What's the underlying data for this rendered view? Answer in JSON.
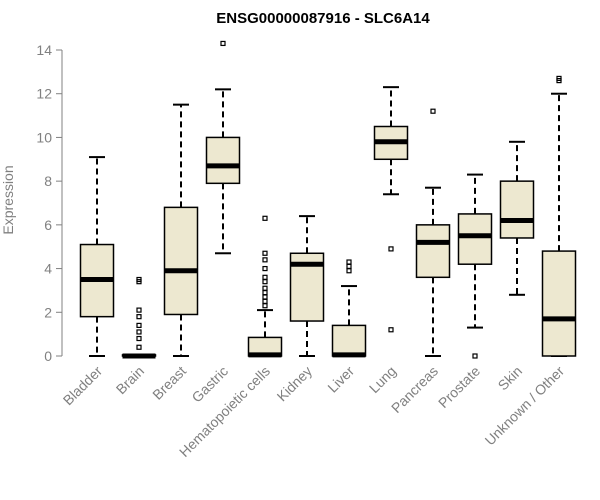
{
  "chart_data": {
    "type": "box",
    "title": "ENSG00000087916 - SLC6A14",
    "xlabel": "",
    "ylabel": "Expression",
    "ylim": [
      0,
      14
    ],
    "yticks": [
      0,
      2,
      4,
      6,
      8,
      10,
      12,
      14
    ],
    "grid": false,
    "box_fill": "#ede8d0",
    "categories": [
      "Bladder",
      "Brain",
      "Breast",
      "Gastric",
      "Hematopoietic cells",
      "Kidney",
      "Liver",
      "Lung",
      "Pancreas",
      "Prostate",
      "Skin",
      "Unknown / Other"
    ],
    "boxes": [
      {
        "whisker_low": 0.0,
        "q1": 1.8,
        "median": 3.5,
        "q3": 5.1,
        "whisker_high": 9.1,
        "outliers": []
      },
      {
        "whisker_low": 0.0,
        "q1": 0.0,
        "median": 0.0,
        "q3": 0.05,
        "whisker_high": 0.05,
        "outliers": [
          0.4,
          0.8,
          1.1,
          1.4,
          1.8,
          2.1,
          3.4,
          3.5
        ]
      },
      {
        "whisker_low": 0.0,
        "q1": 1.9,
        "median": 3.9,
        "q3": 6.8,
        "whisker_high": 11.5,
        "outliers": []
      },
      {
        "whisker_low": 4.7,
        "q1": 7.9,
        "median": 8.7,
        "q3": 10.0,
        "whisker_high": 12.2,
        "outliers": [
          14.3
        ]
      },
      {
        "whisker_low": 0.0,
        "q1": 0.0,
        "median": 0.05,
        "q3": 0.85,
        "whisker_high": 2.1,
        "outliers": [
          2.3,
          2.5,
          2.7,
          2.9,
          3.1,
          3.4,
          3.6,
          4.0,
          4.4,
          4.7,
          6.3
        ]
      },
      {
        "whisker_low": 0.0,
        "q1": 1.6,
        "median": 4.2,
        "q3": 4.7,
        "whisker_high": 6.4,
        "outliers": []
      },
      {
        "whisker_low": 0.0,
        "q1": 0.0,
        "median": 0.05,
        "q3": 1.4,
        "whisker_high": 3.2,
        "outliers": [
          3.9,
          4.1,
          4.3
        ]
      },
      {
        "whisker_low": 7.4,
        "q1": 9.0,
        "median": 9.8,
        "q3": 10.5,
        "whisker_high": 12.3,
        "outliers": [
          1.2,
          4.9
        ]
      },
      {
        "whisker_low": 0.0,
        "q1": 3.6,
        "median": 5.2,
        "q3": 6.0,
        "whisker_high": 7.7,
        "outliers": [
          11.2
        ]
      },
      {
        "whisker_low": 1.3,
        "q1": 4.2,
        "median": 5.5,
        "q3": 6.5,
        "whisker_high": 8.3,
        "outliers": [
          0.0
        ]
      },
      {
        "whisker_low": 2.8,
        "q1": 5.4,
        "median": 6.2,
        "q3": 8.0,
        "whisker_high": 9.8,
        "outliers": []
      },
      {
        "whisker_low": 0.0,
        "q1": 0.0,
        "median": 1.7,
        "q3": 4.8,
        "whisker_high": 12.0,
        "outliers": [
          12.6,
          12.7
        ]
      }
    ]
  }
}
